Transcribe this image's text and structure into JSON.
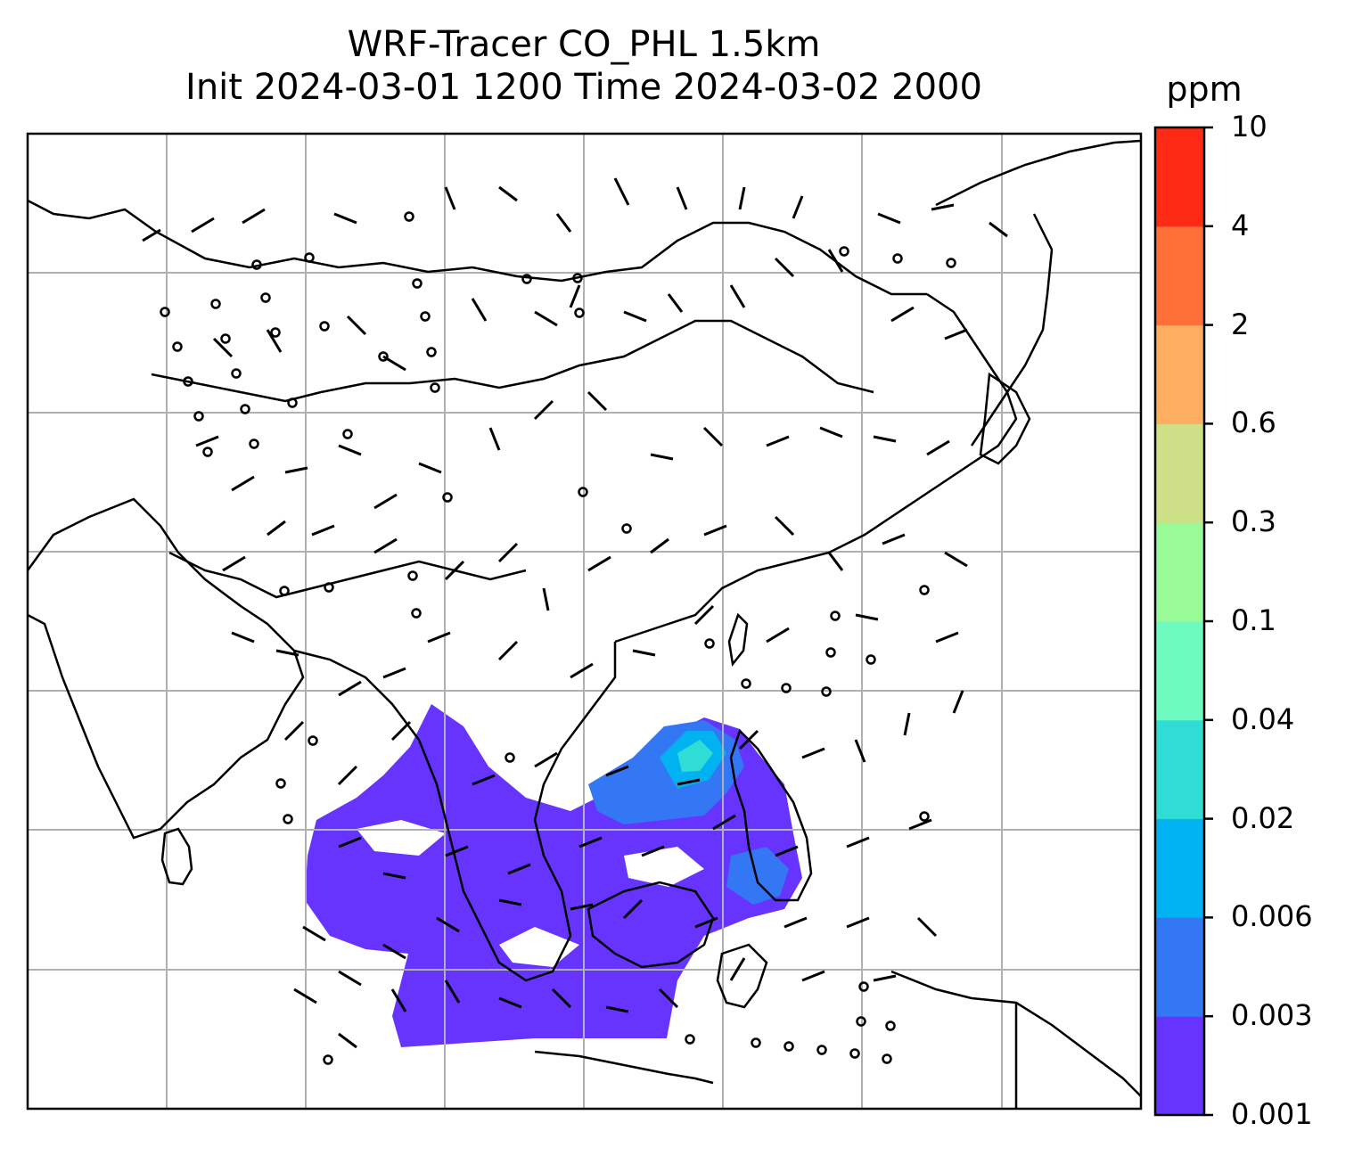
{
  "title": {
    "line1": "WRF-Tracer CO_PHL 1.5km",
    "line2": "Init 2024-03-01 1200 Time 2024-03-02 2000"
  },
  "colorbar": {
    "unit": "ppm",
    "levels": [
      "0.001",
      "0.003",
      "0.006",
      "0.02",
      "0.04",
      "0.1",
      "0.3",
      "0.6",
      "2",
      "4",
      "10"
    ],
    "colors": [
      "#6633ff",
      "#3377f5",
      "#00b3f0",
      "#30ddd5",
      "#6dfbbf",
      "#98fb98",
      "#cde088",
      "#fdae61",
      "#ff7038",
      "#ff2a15"
    ]
  },
  "map": {
    "type": "filled-contour with wind barbs",
    "gridlines": true,
    "coastlines": true,
    "tracer_plume_color_main": "#6633ff",
    "tracer_plume_color_secondary": "#3377f5",
    "tracer_plume_color_core": "#00b3f0"
  }
}
